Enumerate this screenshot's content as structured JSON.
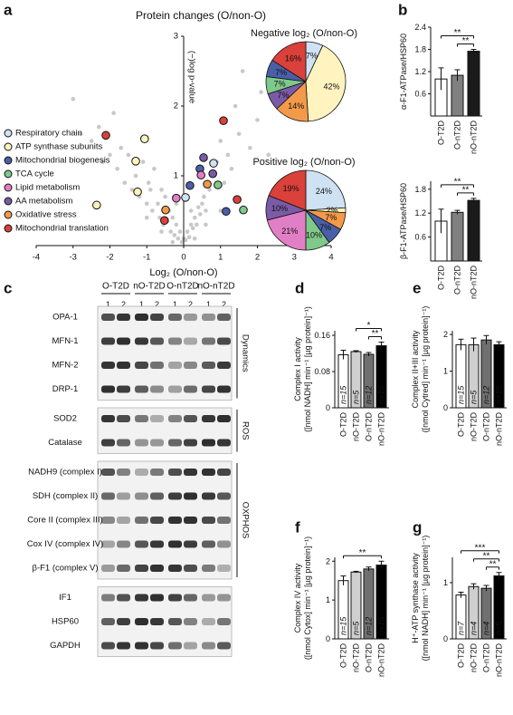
{
  "panels": [
    "a",
    "b",
    "c",
    "d",
    "e",
    "f",
    "g"
  ],
  "chart_data": [
    {
      "type": "scatter",
      "title": "Protein changes (O/non-O)",
      "xlabel": "Log₂ (O/non-O)",
      "ylabel": "(−)log p-value",
      "xlim": [
        -4,
        4
      ],
      "ylim": [
        0,
        3
      ],
      "xticks": [
        -4,
        -3,
        -2,
        -1,
        0,
        1,
        2,
        3,
        4
      ],
      "yticks": [
        1,
        2,
        3
      ],
      "background_points": {
        "color": "#c8c8c8",
        "x": [
          -3.0,
          -2.8,
          -2.5,
          -2.3,
          -2.2,
          -2.0,
          -1.9,
          -1.8,
          -1.7,
          -1.6,
          -1.5,
          -1.4,
          -1.3,
          -1.2,
          -1.1,
          -1.0,
          -0.95,
          -0.9,
          -0.85,
          -0.8,
          -0.7,
          -0.65,
          -0.6,
          -0.55,
          -0.5,
          -0.45,
          -0.4,
          -0.35,
          -0.3,
          -0.25,
          -0.2,
          -0.15,
          -0.1,
          -0.05,
          0.0,
          0.05,
          0.1,
          0.15,
          0.2,
          0.25,
          0.3,
          0.35,
          0.4,
          0.45,
          0.5,
          0.55,
          0.6,
          0.65,
          0.7,
          0.8,
          0.9,
          1.0,
          1.1,
          1.2,
          1.3,
          1.4,
          1.5,
          1.6,
          1.8,
          2.0,
          2.1,
          2.3,
          -0.6,
          -0.3,
          0.3,
          0.6,
          -1.0,
          1.0,
          -0.2,
          0.2
        ],
        "y": [
          2.1,
          1.6,
          1.5,
          1.7,
          1.2,
          1.3,
          1.9,
          1.1,
          1.4,
          0.9,
          1.3,
          0.8,
          1.0,
          0.7,
          1.2,
          0.6,
          0.9,
          0.8,
          0.5,
          1.1,
          0.6,
          0.4,
          0.8,
          0.3,
          0.7,
          0.35,
          0.5,
          0.2,
          0.4,
          0.15,
          0.3,
          0.1,
          0.2,
          0.05,
          0.1,
          0.08,
          0.2,
          0.12,
          0.3,
          0.25,
          0.4,
          0.3,
          0.55,
          0.45,
          0.6,
          0.7,
          0.5,
          0.9,
          0.8,
          1.0,
          1.2,
          1.5,
          0.9,
          1.3,
          1.1,
          2.0,
          1.6,
          2.5,
          1.4,
          1.8,
          2.2,
          1.3,
          0.2,
          0.05,
          0.1,
          0.3,
          0.4,
          0.5,
          0.6,
          0.5
        ]
      },
      "series": [
        {
          "name": "Respiratory chain",
          "color": "#cfe2f3",
          "x": [
            0.81,
            0.05
          ],
          "y": [
            1.18,
            0.69
          ]
        },
        {
          "name": "ATP synthase subunits",
          "color": "#fff4bf",
          "x": [
            -1.06,
            -1.3,
            -1.25,
            -2.36
          ],
          "y": [
            1.53,
            1.21,
            0.77,
            0.58
          ]
        },
        {
          "name": "Mitochondrial biogenesis",
          "color": "#4a5fa8",
          "x": [
            0.44,
            0.17,
            1.15
          ],
          "y": [
            1.1,
            0.86,
            0.49
          ]
        },
        {
          "name": "TCA cycle",
          "color": "#7fc98a",
          "x": [
            0.93,
            1.62
          ],
          "y": [
            0.87,
            0.51
          ]
        },
        {
          "name": "Lipid metabolism",
          "color": "#e07fc6",
          "x": [
            0.47,
            -0.2
          ],
          "y": [
            1.01,
            0.68
          ]
        },
        {
          "name": "AA metabolism",
          "color": "#7b5aa6",
          "x": [
            0.54,
            0.79
          ],
          "y": [
            1.26,
            1.03
          ]
        },
        {
          "name": "Oxidative stress",
          "color": "#f39a4a",
          "x": [
            0.64,
            -0.49
          ],
          "y": [
            0.88,
            0.51
          ]
        },
        {
          "name": "Mitochondrial translation",
          "color": "#d9413a",
          "x": [
            -2.11,
            1.08,
            1.45,
            -0.52
          ],
          "y": [
            1.58,
            1.79,
            0.66,
            0.36
          ]
        }
      ]
    },
    {
      "type": "pie",
      "title": "Negative log₂ (O/non-O)",
      "values": [
        7,
        42,
        14,
        7,
        7,
        7,
        16
      ],
      "value_labels": [
        "7%",
        "42%",
        "14%",
        "7%",
        "7%",
        "7%",
        "16%"
      ],
      "colors": [
        "#cfe2f3",
        "#fff4bf",
        "#f39a4a",
        "#7b5aa6",
        "#7fc98a",
        "#4a5fa8",
        "#d9413a"
      ]
    },
    {
      "type": "pie",
      "title": "Positive log₂ (O/non-O)",
      "values": [
        24,
        2,
        7,
        7,
        10,
        21,
        10,
        19
      ],
      "value_labels": [
        "24%",
        "2%",
        "7%",
        "7%",
        "10%",
        "21%",
        "10%",
        "19%"
      ],
      "colors": [
        "#cfe2f3",
        "#fff4bf",
        "#f39a4a",
        "#4a5fa8",
        "#7fc98a",
        "#e07fc6",
        "#7b5aa6",
        "#d9413a"
      ]
    },
    {
      "type": "bar",
      "ylabel": [
        "α-F1-ATPase/HSP60"
      ],
      "categories": [
        "O-T2D",
        "O-nT2D",
        "nO-nT2D"
      ],
      "values": [
        1.0,
        1.1,
        1.75
      ],
      "errors": [
        0.3,
        0.15,
        0.05
      ],
      "colors": [
        "#ffffff",
        "#808080",
        "#1a1a1a"
      ],
      "ylim": [
        0,
        2.4
      ],
      "yticks": [
        0.6,
        1.2,
        1.8,
        2.4
      ],
      "significance": [
        {
          "label": "**",
          "between": [
            "O-T2D",
            "nO-nT2D"
          ]
        },
        {
          "label": "**",
          "between": [
            "O-nT2D",
            "nO-nT2D"
          ]
        }
      ]
    },
    {
      "type": "bar",
      "ylabel": [
        "β-F1-ATPase/HSP60"
      ],
      "categories": [
        "O-T2D",
        "O-nT2D",
        "nO-nT2D"
      ],
      "values": [
        1.0,
        1.22,
        1.52
      ],
      "errors": [
        0.3,
        0.05,
        0.05
      ],
      "colors": [
        "#ffffff",
        "#808080",
        "#1a1a1a"
      ],
      "ylim": [
        0,
        2.0
      ],
      "yticks": [
        0.6,
        1.2,
        1.8
      ],
      "significance": [
        {
          "label": "**",
          "between": [
            "O-T2D",
            "nO-nT2D"
          ]
        },
        {
          "label": "**",
          "between": [
            "O-nT2D",
            "nO-nT2D"
          ]
        }
      ]
    },
    {
      "type": "bar",
      "ylabel": [
        "Complex I activity",
        "([nmol NADH] min⁻¹ [µg protein]⁻¹)"
      ],
      "categories": [
        "O-T2D",
        "nO-T2D",
        "O-nT2D",
        "nO-nT2D"
      ],
      "values": [
        0.117,
        0.124,
        0.118,
        0.137
      ],
      "errors": [
        0.01,
        0.002,
        0.004,
        0.008
      ],
      "n_labels": [
        "n=15",
        "n=5",
        "n=12",
        "n=15"
      ],
      "colors": [
        "#ffffff",
        "#cfcfcf",
        "#707070",
        "#000000"
      ],
      "ylim": [
        0,
        0.17
      ],
      "yticks": [
        0,
        0.08,
        0.16
      ],
      "significance": [
        {
          "label": "*",
          "between": [
            "nO-T2D",
            "nO-nT2D"
          ]
        },
        {
          "label": "**",
          "between": [
            "O-nT2D",
            "nO-nT2D"
          ]
        }
      ]
    },
    {
      "type": "bar",
      "ylabel": [
        "Complex II+III activity",
        "([nmol Cytred] min⁻¹ [µg protein]⁻¹)"
      ],
      "categories": [
        "O-T2D",
        "nO-T2D",
        "O-nT2D",
        "nO-nT2D"
      ],
      "values": [
        1.72,
        1.72,
        1.85,
        1.72
      ],
      "errors": [
        0.15,
        0.18,
        0.12,
        0.08
      ],
      "n_labels": [
        "n=15",
        "n=5",
        "n=12",
        "n=15"
      ],
      "colors": [
        "#ffffff",
        "#cfcfcf",
        "#707070",
        "#000000"
      ],
      "ylim": [
        0,
        2.1
      ],
      "yticks": [
        0,
        1,
        2
      ],
      "significance": []
    },
    {
      "type": "bar",
      "ylabel": [
        "Complex IV activity",
        "([nmol Cytox] min⁻¹ [µg protein]⁻¹)"
      ],
      "categories": [
        "O-T2D",
        "nO-T2D",
        "O-nT2D",
        "nO-nT2D"
      ],
      "values": [
        1.5,
        1.72,
        1.8,
        1.9
      ],
      "errors": [
        0.12,
        0.02,
        0.05,
        0.1
      ],
      "n_labels": [
        "n=15",
        "n=5",
        "n=12",
        "n=15"
      ],
      "colors": [
        "#ffffff",
        "#cfcfcf",
        "#707070",
        "#000000"
      ],
      "ylim": [
        0,
        2.1
      ],
      "yticks": [
        0,
        1,
        2
      ],
      "significance": [
        {
          "label": "**",
          "between": [
            "O-T2D",
            "nO-nT2D"
          ]
        }
      ]
    },
    {
      "type": "bar",
      "ylabel": [
        "H⁺-ATP synthase activity",
        "([nmol NADH] min⁻¹ [µg protein]⁻¹)"
      ],
      "categories": [
        "O-T2D",
        "nO-T2D",
        "O-nT2D",
        "nO-nT2D"
      ],
      "values": [
        0.78,
        0.93,
        0.9,
        1.12
      ],
      "errors": [
        0.05,
        0.05,
        0.05,
        0.06
      ],
      "n_labels": [
        "n=7",
        "n=4",
        "n=4",
        "n=5"
      ],
      "colors": [
        "#ffffff",
        "#cfcfcf",
        "#707070",
        "#000000"
      ],
      "ylim": [
        0,
        1.45
      ],
      "yticks": [
        0,
        1
      ],
      "significance": [
        {
          "label": "***",
          "between": [
            "O-T2D",
            "nO-nT2D"
          ]
        },
        {
          "label": "**",
          "between": [
            "nO-T2D",
            "nO-nT2D"
          ]
        },
        {
          "label": "**",
          "between": [
            "O-nT2D",
            "nO-nT2D"
          ]
        }
      ]
    }
  ],
  "blot": {
    "groups": [
      "O-T2D",
      "nO-T2D",
      "O-nT2D",
      "nO-nT2D"
    ],
    "lanes": [
      "1",
      "2"
    ],
    "sections": [
      {
        "label": "Dynamics",
        "rows": [
          "OPA-1",
          "MFN-1",
          "MFN-2",
          "DRP-1"
        ]
      },
      {
        "label": "ROS",
        "rows": [
          "SOD2",
          "Catalase"
        ]
      },
      {
        "label": "OXPHOS",
        "rows": [
          "NADH9 (complex I)",
          "SDH (complex II)",
          "Core II (complex III)",
          "Cox IV (complex IV)",
          "β-F1 (complex V)"
        ]
      },
      {
        "rows": [
          "IF1",
          "HSP60",
          "GAPDH"
        ]
      }
    ]
  }
}
